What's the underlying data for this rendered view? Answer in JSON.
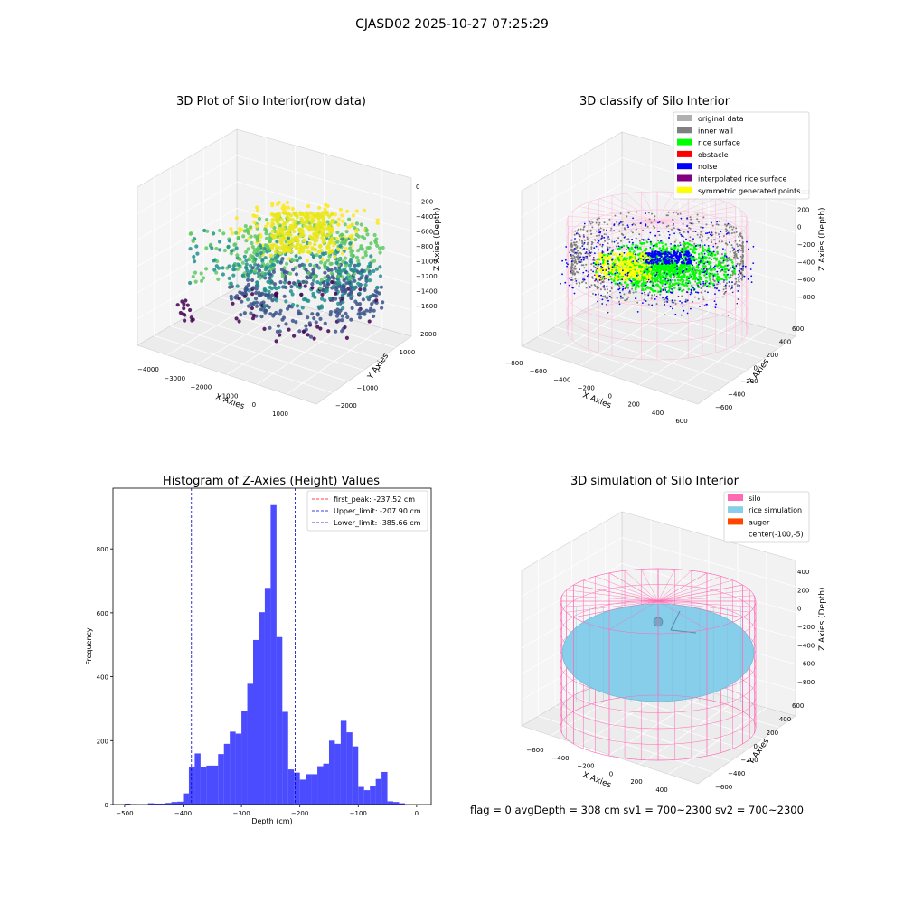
{
  "suptitle": "CJASD02 2025-10-27 07:25:29",
  "status_line": "flag = 0     avgDepth = 308 cm  sv1 = 700~2300  sv2 = 700~2300",
  "chart_data": [
    {
      "type": "scatter3d",
      "title": "3D Plot of Silo Interior(row data)",
      "xlabel": "X Axies",
      "ylabel": "Y Axies",
      "zlabel": "Z Axies (Depth)",
      "xticks": [
        "−4000",
        "−3000",
        "−2000",
        "−1000",
        "0",
        "1000"
      ],
      "yticks": [
        "−2000",
        "−1000",
        "0",
        "1000",
        "2000"
      ],
      "zticks": [
        "0",
        "−200",
        "−400",
        "−600",
        "−800",
        "−1000",
        "−1200",
        "−1400",
        "−1600"
      ],
      "colormap": [
        "#440154",
        "#3b528b",
        "#21918c",
        "#5ec962",
        "#fde725"
      ]
    },
    {
      "type": "scatter3d",
      "title": "3D classify of Silo Interior",
      "xlabel": "X Axies",
      "ylabel": "Y Axies",
      "zlabel": "Z Axies (Depth)",
      "xticks": [
        "−800",
        "−600",
        "−400",
        "−200",
        "0",
        "200",
        "400",
        "600"
      ],
      "yticks": [
        "−600",
        "−400",
        "−200",
        "0",
        "200",
        "400",
        "600"
      ],
      "zticks": [
        "400",
        "200",
        "0",
        "−200",
        "−400",
        "−600",
        "−800"
      ],
      "legend": [
        {
          "name": "original data",
          "color": "#b0b0b0"
        },
        {
          "name": "inner wall",
          "color": "#808080"
        },
        {
          "name": "rice surface",
          "color": "#00ff00"
        },
        {
          "name": "obstacle",
          "color": "#ff0000"
        },
        {
          "name": "noise",
          "color": "#0000ff"
        },
        {
          "name": "interpolated rice surface",
          "color": "#800080"
        },
        {
          "name": "symmetric generated points",
          "color": "#ffff00"
        }
      ],
      "legend_position": "top-right"
    },
    {
      "type": "bar",
      "title": "Histogram of Z-Axies (Height) Values",
      "xlabel": "Depth (cm)",
      "ylabel": "Frequency",
      "xlim": [
        -520,
        25
      ],
      "ylim": [
        0,
        990
      ],
      "xticks": [
        -500,
        -400,
        -300,
        -200,
        -100,
        0
      ],
      "yticks": [
        0,
        200,
        400,
        600,
        800
      ],
      "bin_width": 10,
      "bin_edges_start": -500,
      "values": [
        3,
        1,
        0,
        0,
        4,
        3,
        3,
        5,
        8,
        9,
        35,
        118,
        160,
        118,
        122,
        122,
        158,
        190,
        228,
        222,
        292,
        378,
        515,
        602,
        678,
        937,
        524,
        290,
        110,
        100,
        78,
        95,
        95,
        120,
        128,
        200,
        190,
        262,
        226,
        182,
        55,
        45,
        58,
        80,
        102,
        10,
        8,
        4,
        0,
        0
      ],
      "bar_color": "#0000ff",
      "lines": [
        {
          "name": "first_peak: -237.52 cm",
          "x": -237.52,
          "color": "#ff0000"
        },
        {
          "name": "Upper_limit: -207.90 cm",
          "x": -207.9,
          "color": "#0000cc"
        },
        {
          "name": "Lower_limit: -385.66 cm",
          "x": -385.66,
          "color": "#0000cc"
        }
      ],
      "legend_position": "top-right"
    },
    {
      "type": "surface3d",
      "title": "3D simulation of Silo Interior",
      "xlabel": "X Axies",
      "ylabel": "Y Axies",
      "zlabel": "Z Axies (Depth)",
      "xticks": [
        "−600",
        "−400",
        "−200",
        "0",
        "200",
        "400"
      ],
      "yticks": [
        "−600",
        "−400",
        "−200",
        "0",
        "200",
        "400",
        "600"
      ],
      "zticks": [
        "400",
        "200",
        "0",
        "−200",
        "−400",
        "−600",
        "−800"
      ],
      "legend": [
        {
          "name": "silo",
          "color": "#ff69b4"
        },
        {
          "name": "rice simulation",
          "color": "#87ceeb"
        },
        {
          "name": "auger",
          "color": "#ff4500"
        },
        {
          "name": "center(-100,-5)",
          "color": ""
        }
      ],
      "legend_position": "top-right"
    }
  ]
}
